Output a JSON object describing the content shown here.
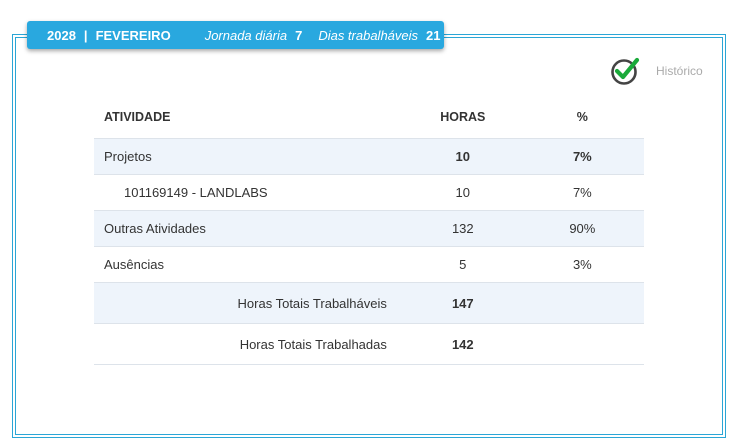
{
  "header": {
    "year": "2028",
    "separator": "|",
    "month": "FEVEREIRO",
    "jornada_label": "Jornada diária",
    "jornada_value": "7",
    "dias_label": "Dias trabalháveis",
    "dias_value": "21"
  },
  "historico": {
    "label": "Histórico",
    "icon": "check-circle-icon",
    "icon_color": "#1aaa3a"
  },
  "table": {
    "columns": [
      "ATIVIDADE",
      "HORAS",
      "%"
    ],
    "rows": [
      {
        "activity": "Projetos",
        "hours": "10",
        "percent": "7%"
      },
      {
        "activity": "101169149 - LANDLABS",
        "hours": "10",
        "percent": "7%"
      },
      {
        "activity": "Outras Atividades",
        "hours": "132",
        "percent": "90%"
      },
      {
        "activity": "Ausências",
        "hours": "5",
        "percent": "3%"
      }
    ],
    "totals": [
      {
        "label": "Horas Totais Trabalháveis",
        "value": "147"
      },
      {
        "label": "Horas Totais Trabalhadas",
        "value": "142"
      }
    ]
  },
  "colors": {
    "accent": "#29a8df",
    "row_shade": "#eef4fb",
    "check_green": "#1aaa3a"
  }
}
